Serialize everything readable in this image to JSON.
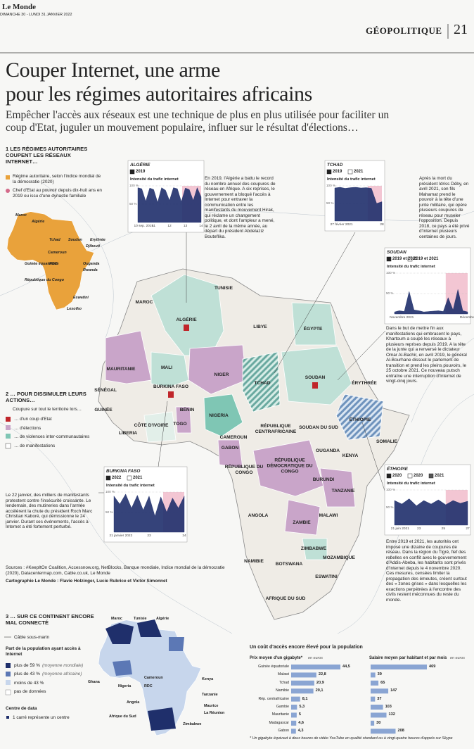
{
  "header": {
    "brand": "Le Monde",
    "date": "DIMANCHE 30 - LUNDI 31 JANVIER 2022",
    "section": "GÉOPOLITIQUE",
    "page": "21"
  },
  "title": [
    "Couper Internet, une arme",
    "pour les régimes autoritaires africains"
  ],
  "subtitle": "Empêcher l'accès aux réseaux est une technique de plus en plus utilisée pour faciliter un coup d'Etat, juguler un mouvement populaire, influer sur le résultat d'élections…",
  "section1": {
    "title": "1 LES RÉGIMES AUTORITAIRES COUPENT LES RÉSEAUX INTERNET…",
    "legend": [
      "Régime autoritaire, selon l'indice mondial de la démocratie (2020)",
      "Chef d'Etat au pouvoir depuis dix-huit ans en 2019 ou issu d'une dynastie familiale"
    ],
    "labels": [
      "Maroc",
      "Algérie",
      "Tchad",
      "Soudan",
      "Erythrée",
      "Djibouti",
      "Cameroun",
      "Guinée équatoriale",
      "RDC",
      "Ouganda",
      "Rwanda",
      "République du Congo",
      "Eswatini",
      "Lesotho"
    ]
  },
  "section2": {
    "title": "2 … POUR DISSIMULER LEURS ACTIONS…",
    "intro": "Coupure sur tout le territoire lors…",
    "legend": [
      "… d'un coup d'Etat",
      "… d'élections",
      "… de violences inter-communautaires",
      "… de manifestations"
    ]
  },
  "map_labels": [
    "MAROC",
    "TUNISIE",
    "ALGÉRIE",
    "LIBYE",
    "ÉGYPTE",
    "MAURITANIE",
    "MALI",
    "NIGER",
    "TCHAD",
    "SOUDAN",
    "ÉRYTHRÉE",
    "SÉNÉGAL",
    "GUINÉE",
    "BURKINA FASO",
    "BÉNIN",
    "TOGO",
    "CÔTE D'IVOIRE",
    "LIBERIA",
    "NIGERIA",
    "CAMEROUN",
    "RÉPUBLIQUE CENTRAFRICAINE",
    "SOUDAN DU SUD",
    "ÉTHIOPIE",
    "SOMALIE",
    "GABON",
    "RÉPUBLIQUE DU CONGO",
    "RÉPUBLIQUE DÉMOCRATIQUE DU CONGO",
    "OUGANDA",
    "KENYA",
    "BURUNDI",
    "TANZANIE",
    "ANGOLA",
    "ZAMBIE",
    "MALAWI",
    "ZIMBABWE",
    "NAMIBIE",
    "BOTSWANA",
    "MOZAMBIQUE",
    "ESWATINI",
    "AFRIQUE DU SUD"
  ],
  "panels": [
    {
      "country": "ALGÉRIE",
      "years": [
        "2019"
      ],
      "caption": "Intensité du trafic internet",
      "ylim": [
        0,
        100
      ],
      "yticks": [
        {
          "value": 100,
          "label": "100 %"
        },
        {
          "value": 50,
          "label": "50 %"
        }
      ],
      "dates": [
        "10 sep. 2019",
        "11",
        "12",
        "13",
        "14"
      ],
      "traffic": [
        95,
        92,
        58,
        94,
        90,
        55,
        95,
        88,
        60,
        95,
        92,
        57,
        94,
        90,
        60,
        95,
        70
      ],
      "text": "En 2019, l'Algérie a battu le record du nombre annuel des coupures de réseau en Afrique. A six reprises, le gouvernement a bloqué l'accès à Internet pour entraver la communication entre les manifestants du mouvement Hirak, qui réclame un changement politique, et dont l'ampleur a mené, le 2 avril de la même année, au départ du président Abdelaziz Bouteflika."
    },
    {
      "country": "TCHAD",
      "years": [
        "2019",
        "2021"
      ],
      "caption": "Intensité du trafic internet",
      "ylim": [
        0,
        100
      ],
      "yticks": [
        {
          "value": 100,
          "label": "100 %"
        },
        {
          "value": 50,
          "label": "50 %"
        }
      ],
      "dates": [
        "27 février 2021",
        "28"
      ],
      "traffic": [
        94,
        96,
        93,
        95,
        96,
        94,
        95,
        93,
        50,
        55
      ],
      "text": "Après la mort du président Idriss Déby, en avril 2021, son fils Mahamat prend le pouvoir à la tête d'une junte militaire, qui opère plusieurs coupures de réseau pour museler l'opposition. Depuis 2018, ce pays a été privé d'Internet plusieurs centaines de jours."
    },
    {
      "country": "SOUDAN",
      "years": [
        "2019 et 2021",
        "2019 et 2021"
      ],
      "caption": "Intensité du trafic internet",
      "ylim": [
        0,
        100
      ],
      "yticks": [
        {
          "value": 100,
          "label": "100 %"
        },
        {
          "value": 50,
          "label": "50 %"
        }
      ],
      "dates": [
        "Novembre 2021",
        "Décembre"
      ],
      "traffic": [
        5,
        8,
        6,
        55,
        10,
        8,
        5,
        6,
        7,
        8,
        6,
        40,
        10,
        60,
        8,
        5
      ],
      "text": "Dans le but de mettre fin aux manifestations qui embrasent le pays, Khartoum a coupé les réseaux à plusieurs reprises depuis 2019. A la tête de la junte qui a renversé le dictateur Omar Al-Bachir, en avril 2019, le général Al-Bourhane dissout le parlement de transition et prend les pleins pouvoirs, le 25 octobre 2021. Ce nouveau putsch entraîne une interruption d'Internet de vingt-cinq jours."
    },
    {
      "country": "BURKINA FASO",
      "years": [
        "2022",
        "2021"
      ],
      "caption": "Intensité du trafic internet",
      "ylim": [
        0,
        100
      ],
      "yticks": [
        {
          "value": 100,
          "label": "100 %"
        },
        {
          "value": 50,
          "label": "50 %"
        }
      ],
      "dates": [
        "21 janvier 2022",
        "23",
        "24"
      ],
      "traffic": [
        90,
        70,
        95,
        60,
        92,
        55,
        90,
        40,
        88,
        50,
        85,
        60,
        90
      ],
      "text": "Le 22 janvier, des milliers de manifestants protestent contre l'insécurité croissante. Le lendemain, des mutineries dans l'armée accélèrent la chute du président Roch Marc Christian Kaboré, qui démissionne le 24 janvier. Durant ces événements, l'accès à Internet a été fortement perturbé."
    },
    {
      "country": "ÉTHIOPIE",
      "years": [
        "2020",
        "2020",
        "2021"
      ],
      "caption": "Intensité du trafic internet",
      "ylim": [
        0,
        100
      ],
      "yticks": [
        {
          "value": 100,
          "label": "100 %"
        },
        {
          "value": 50,
          "label": "50 %"
        }
      ],
      "dates": [
        "21 juin 2021",
        "23",
        "25",
        "27"
      ],
      "traffic": [
        70,
        60,
        75,
        55,
        70,
        60,
        72,
        58,
        70,
        62,
        68
      ],
      "text": "Entre 2019 et 2021, les autorités ont imposé une dizaine de coupures de réseau. Dans la région du Tigré, fief des rebelles en conflit avec le gouvernement d'Addis-Abeba, les habitants sont privés d'Internet depuis le 4 novembre 2020. Ces mesures, censées limiter la propagation des émeutes, créent surtout des « zones grises » dans lesquelles les exactions perpétrées à l'encontre des civils restent méconnues du reste du monde."
    }
  ],
  "sources": "Sources : #KeepItOn Coalition, Accessnow.org, NetBlocks, Banque mondiale, Indice mondial de la démocratie (2020), Datacentermap.com, Cable.co.uk, Le Monde",
  "cartography": "Cartographie Le Monde : Flavie Holzinger, Lucie Rubrice et Victor Simonnet",
  "section3": {
    "title": "3 … SUR CE CONTINENT ENCORE MAL CONNECTÉ",
    "cable": "Câble sous-marin",
    "share_title": "Part de la population ayant accès à Internet",
    "share_legend": [
      {
        "label": "plus de 59 %",
        "note": "(moyenne mondiale)"
      },
      {
        "label": "plus de 43 %",
        "note": "(moyenne africaine)"
      },
      {
        "label": "moins de 43 %"
      },
      {
        "label": "pas de données"
      }
    ],
    "data_title": "Centre de data",
    "data_note": "1 carré représente un centre",
    "labels": [
      "Maroc",
      "Tunisie",
      "Algérie",
      "Ghana",
      "Nigeria",
      "Cameroun",
      "RDC",
      "Kenya",
      "Tanzanie",
      "Angola",
      "Maurice",
      "La Réunion",
      "Afrique du Sud",
      "Zimbabwe"
    ]
  },
  "costs": {
    "title": "Un coût d'accès encore élevé pour la population",
    "price": {
      "title": "Prix moyen d'un gigabyte*",
      "unit": "en euros",
      "categories": [
        "Guinée équatoriale",
        "Malawi",
        "Tchad",
        "Namibie",
        "Rép. centrafricaine",
        "Gambie",
        "Mauritanie",
        "Madagascar",
        "Gabon"
      ],
      "values": [
        44.5,
        22.8,
        20.9,
        20.1,
        8.1,
        5.3,
        5,
        4.6,
        4.3
      ],
      "value_labels": [
        "44,5",
        "22,8",
        "20,9",
        "20,1",
        "8,1",
        "5,3",
        "5",
        "4,6",
        "4,3"
      ]
    },
    "salary": {
      "title": "Salaire moyen par habitant et par mois",
      "unit": "en euros",
      "values": [
        469,
        39,
        65,
        147,
        37,
        103,
        132,
        30,
        208
      ]
    },
    "footnote": "* Un gigabyte équivaut à deux heures de vidéo YouTube en qualité standard ou à vingt-quatre heures d'appels sur Skype"
  }
}
